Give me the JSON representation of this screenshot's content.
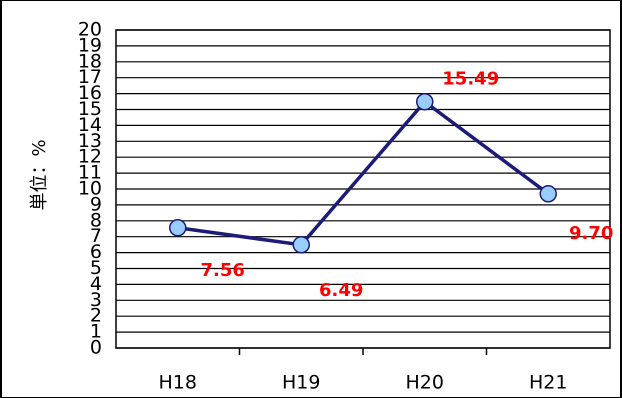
{
  "chart_data": {
    "type": "line",
    "y_label": "単位：%",
    "categories": [
      "H18",
      "H19",
      "H20",
      "H21"
    ],
    "values": [
      7.56,
      6.49,
      15.49,
      9.7
    ],
    "value_labels": [
      "7.56",
      "6.49",
      "15.49",
      "9.70"
    ],
    "color": "#1c1c78",
    "marker_color": "#99ccff",
    "label_color": "#ff0000",
    "ylim": [
      0,
      20
    ],
    "yticks": [
      0,
      1,
      2,
      3,
      4,
      5,
      6,
      7,
      8,
      9,
      10,
      11,
      12,
      13,
      14,
      15,
      16,
      17,
      18,
      19,
      20
    ],
    "grid": true
  }
}
